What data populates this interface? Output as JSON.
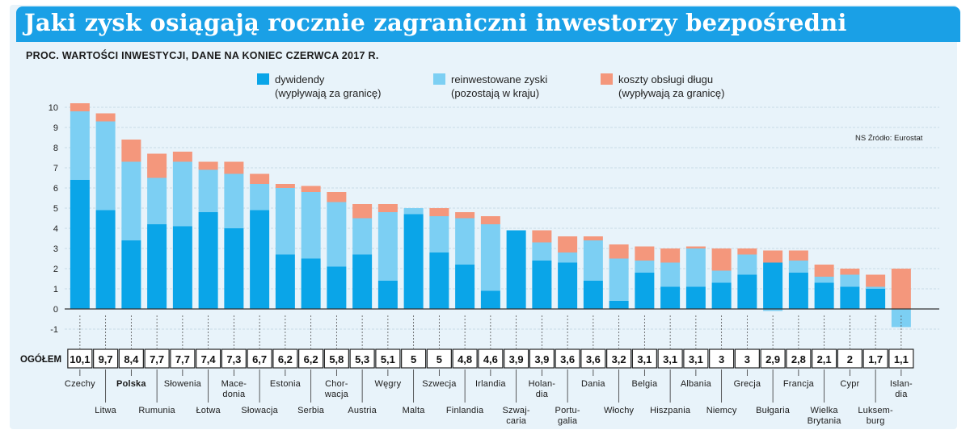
{
  "title": "Jaki zysk osiągają rocznie zagraniczni inwestorzy bezpośredni",
  "subtitle": "PROC. WARTOŚCI INWESTYCJI, DANE NA KONIEC CZERWCA 2017 R.",
  "source": "NS  Źródło: Eurostat",
  "total_label": "OGÓŁEM",
  "colors": {
    "dividends": "#0aa5e8",
    "reinvested": "#7ccff3",
    "debt": "#f4977c",
    "highlight": "#e32b2b",
    "title_bg": "#1aa0e6"
  },
  "chart_data": {
    "type": "bar",
    "stacked": true,
    "title": "Jaki zysk osiągają rocznie zagraniczni inwestorzy bezpośredni",
    "subtitle": "PROC. WARTOŚCI INWESTYCJI, DANE NA KONIEC CZERWCA 2017 R.",
    "ylim": [
      -1,
      10
    ],
    "yticks": [
      "10",
      "9",
      "8",
      "7",
      "6",
      "5",
      "4",
      "3",
      "2",
      "1",
      "0",
      "-1"
    ],
    "grid": true,
    "legend_position": "top",
    "highlight_category": "Polska",
    "categories": [
      {
        "name": "Czechy",
        "lines": [
          "Czechy"
        ]
      },
      {
        "name": "Litwa",
        "lines": [
          "Litwa"
        ]
      },
      {
        "name": "Polska",
        "lines": [
          "Polska"
        ]
      },
      {
        "name": "Rumunia",
        "lines": [
          "Rumunia"
        ]
      },
      {
        "name": "Słowenia",
        "lines": [
          "Słowenia"
        ]
      },
      {
        "name": "Łotwa",
        "lines": [
          "Łotwa"
        ]
      },
      {
        "name": "Macedonia",
        "lines": [
          "Mace-",
          "donia"
        ]
      },
      {
        "name": "Słowacja",
        "lines": [
          "Słowacja"
        ]
      },
      {
        "name": "Estonia",
        "lines": [
          "Estonia"
        ]
      },
      {
        "name": "Serbia",
        "lines": [
          "Serbia"
        ]
      },
      {
        "name": "Chorwacja",
        "lines": [
          "Chor-",
          "wacja"
        ]
      },
      {
        "name": "Austria",
        "lines": [
          "Austria"
        ]
      },
      {
        "name": "Węgry",
        "lines": [
          "Węgry"
        ]
      },
      {
        "name": "Malta",
        "lines": [
          "Malta"
        ]
      },
      {
        "name": "Szwecja",
        "lines": [
          "Szwecja"
        ]
      },
      {
        "name": "Finlandia",
        "lines": [
          "Finlandia"
        ]
      },
      {
        "name": "Irlandia",
        "lines": [
          "Irlandia"
        ]
      },
      {
        "name": "Szwajcaria",
        "lines": [
          "Szwaj-",
          "caria"
        ]
      },
      {
        "name": "Holandia",
        "lines": [
          "Holan-",
          "dia"
        ]
      },
      {
        "name": "Portugalia",
        "lines": [
          "Portu-",
          "galia"
        ]
      },
      {
        "name": "Dania",
        "lines": [
          "Dania"
        ]
      },
      {
        "name": "Włochy",
        "lines": [
          "Włochy"
        ]
      },
      {
        "name": "Belgia",
        "lines": [
          "Belgia"
        ]
      },
      {
        "name": "Hiszpania",
        "lines": [
          "Hiszpania"
        ]
      },
      {
        "name": "Albania",
        "lines": [
          "Albania"
        ]
      },
      {
        "name": "Niemcy",
        "lines": [
          "Niemcy"
        ]
      },
      {
        "name": "Grecja",
        "lines": [
          "Grecja"
        ]
      },
      {
        "name": "Bułgaria",
        "lines": [
          "Bułgaria"
        ]
      },
      {
        "name": "Francja",
        "lines": [
          "Francja"
        ]
      },
      {
        "name": "Wielka Brytania",
        "lines": [
          "Wielka",
          "Brytania"
        ]
      },
      {
        "name": "Cypr",
        "lines": [
          "Cypr"
        ]
      },
      {
        "name": "Luksemburg",
        "lines": [
          "Luksem-",
          "burg"
        ]
      },
      {
        "name": "Islandia",
        "lines": [
          "Islan-",
          "dia"
        ]
      }
    ],
    "totals": [
      "10,1",
      "9,7",
      "8,4",
      "7,7",
      "7,7",
      "7,4",
      "7,3",
      "6,7",
      "6,2",
      "6,2",
      "5,8",
      "5,3",
      "5,1",
      "5",
      "5",
      "4,8",
      "4,6",
      "3,9",
      "3,9",
      "3,6",
      "3,6",
      "3,2",
      "3,1",
      "3,1",
      "3,1",
      "3",
      "3",
      "2,9",
      "2,8",
      "2,1",
      "2",
      "1,7",
      "1,1"
    ],
    "series": [
      {
        "name": "dywidendy",
        "name_line2": "(wypływają za granicę)",
        "values": [
          6.4,
          4.9,
          3.4,
          4.2,
          4.1,
          4.8,
          4.0,
          4.9,
          2.7,
          2.5,
          2.1,
          2.7,
          1.4,
          4.7,
          2.8,
          2.2,
          0.9,
          3.9,
          2.4,
          2.3,
          1.4,
          0.4,
          1.8,
          1.1,
          1.1,
          1.3,
          1.7,
          2.3,
          1.8,
          1.3,
          1.1,
          1.0,
          0
        ]
      },
      {
        "name": "reinwestowane zyski",
        "name_line2": "(pozostają w kraju)",
        "values": [
          3.4,
          4.4,
          3.9,
          2.3,
          3.2,
          2.1,
          2.7,
          1.3,
          3.3,
          3.3,
          3.2,
          1.8,
          3.4,
          0.3,
          1.8,
          2.3,
          3.3,
          0,
          0.9,
          0.5,
          2.0,
          2.1,
          0.6,
          1.2,
          1.9,
          0.6,
          1.0,
          -0.1,
          0.6,
          0.3,
          0.6,
          0.1,
          -0.9
        ]
      },
      {
        "name": "koszty obsługi długu",
        "name_line2": "(wypływają za granicę)",
        "values": [
          0.4,
          0.4,
          1.1,
          1.2,
          0.5,
          0.4,
          0.6,
          0.5,
          0.2,
          0.3,
          0.5,
          0.7,
          0.4,
          0,
          0.4,
          0.3,
          0.4,
          0,
          0.6,
          0.8,
          0.2,
          0.7,
          0.7,
          0.7,
          0.1,
          1.1,
          0.3,
          0.6,
          0.5,
          0.6,
          0.3,
          0.6,
          2.0
        ]
      }
    ]
  }
}
